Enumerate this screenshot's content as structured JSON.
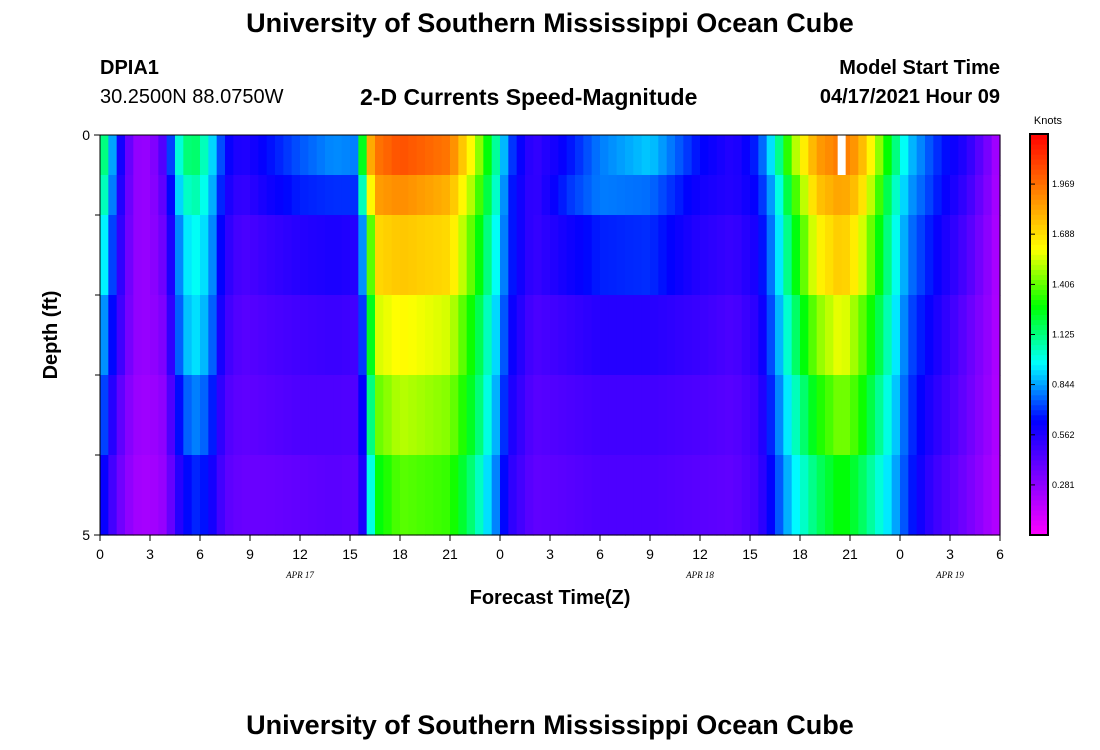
{
  "page": {
    "title_top": "University of Southern Mississippi Ocean Cube",
    "title_bottom": "University of Southern Mississippi Ocean Cube",
    "station_id": "DPIA1",
    "coordinates": "30.2500N  88.0750W",
    "product_title": "2-D Currents Speed-Magnitude",
    "model_start_label": "Model Start Time",
    "model_start_value": "04/17/2021 Hour 09"
  },
  "chart_data": {
    "type": "heatmap",
    "title": "2-D Currents Speed-Magnitude",
    "xlabel": "Forecast Time(Z)",
    "ylabel": "Depth (ft)",
    "x_range_hours": [
      0,
      54
    ],
    "y_range_ft": [
      0,
      5
    ],
    "y_axis_inverted": true,
    "x_tick_hours": [
      0,
      3,
      6,
      9,
      12,
      15,
      18,
      21,
      24,
      27,
      30,
      33,
      36,
      39,
      42,
      45,
      48,
      51,
      54
    ],
    "x_tick_labels": [
      "0",
      "3",
      "6",
      "9",
      "12",
      "15",
      "18",
      "21",
      "0",
      "3",
      "6",
      "9",
      "12",
      "15",
      "18",
      "21",
      "0",
      "3",
      "6"
    ],
    "y_tick_labels": [
      {
        "value": 0,
        "label": "0"
      },
      {
        "value": 5,
        "label": "5"
      }
    ],
    "y_minor_ticks": [
      1,
      2,
      3,
      4
    ],
    "date_labels": [
      {
        "hour": 12,
        "label": "APR 17"
      },
      {
        "hour": 36,
        "label": "APR 18"
      },
      {
        "hour": 51,
        "label": "APR 19"
      }
    ],
    "colorbar": {
      "units": "Knots",
      "min": 0,
      "max": 2.25,
      "ticks": [
        0.281,
        0.562,
        0.844,
        1.125,
        1.406,
        1.688,
        1.969
      ],
      "colors": [
        "#ff00ff",
        "#8000ff",
        "#0000ff",
        "#00ffff",
        "#00ff00",
        "#ffff00",
        "#ff8000",
        "#ff0000"
      ]
    },
    "depth_rows_ft": [
      0.25,
      0.75,
      1.5,
      2.5,
      3.5,
      4.5
    ],
    "speed_profile_hours": [
      0,
      0.5,
      1,
      2,
      3,
      4,
      4.5,
      5.5,
      6.5,
      7.5,
      8.5,
      10,
      12,
      14,
      15.5,
      16,
      16.5,
      18,
      21,
      22.5,
      24,
      24.5,
      26,
      28,
      30,
      33,
      36,
      38,
      39.5,
      40.5,
      41.5,
      43,
      44.5,
      45.5,
      46.5,
      47.5,
      48.5,
      50,
      52,
      53.5,
      54
    ],
    "speed_knots": [
      [
        1.25,
        1.0,
        0.7,
        0.28,
        0.26,
        0.5,
        0.95,
        1.2,
        1.0,
        0.65,
        0.55,
        0.65,
        0.75,
        0.82,
        0.8,
        1.7,
        1.95,
        2.05,
        1.95,
        1.55,
        1.0,
        0.75,
        0.5,
        0.65,
        0.8,
        0.9,
        0.65,
        0.55,
        0.7,
        1.0,
        1.45,
        1.85,
        1.95,
        1.85,
        1.55,
        1.2,
        0.9,
        0.72,
        0.55,
        0.3,
        0.18
      ],
      [
        1.15,
        0.95,
        0.65,
        0.28,
        0.26,
        0.45,
        0.85,
        1.1,
        0.95,
        0.6,
        0.5,
        0.6,
        0.68,
        0.7,
        0.7,
        1.4,
        1.85,
        1.9,
        1.8,
        1.45,
        0.95,
        0.7,
        0.5,
        0.7,
        0.8,
        0.78,
        0.6,
        0.55,
        0.65,
        0.9,
        1.3,
        1.75,
        1.85,
        1.75,
        1.45,
        1.1,
        0.85,
        0.7,
        0.5,
        0.28,
        0.18
      ],
      [
        1.05,
        0.85,
        0.6,
        0.28,
        0.26,
        0.4,
        0.75,
        1.0,
        0.9,
        0.55,
        0.45,
        0.5,
        0.55,
        0.58,
        0.55,
        1.1,
        1.7,
        1.75,
        1.7,
        1.35,
        0.9,
        0.7,
        0.5,
        0.6,
        0.68,
        0.7,
        0.55,
        0.5,
        0.6,
        0.85,
        1.2,
        1.62,
        1.75,
        1.62,
        1.35,
        1.05,
        0.8,
        0.65,
        0.45,
        0.26,
        0.18
      ],
      [
        0.9,
        0.75,
        0.55,
        0.28,
        0.26,
        0.35,
        0.7,
        0.95,
        0.85,
        0.5,
        0.42,
        0.45,
        0.48,
        0.5,
        0.48,
        0.95,
        1.55,
        1.62,
        1.55,
        1.25,
        0.85,
        0.65,
        0.45,
        0.5,
        0.55,
        0.55,
        0.5,
        0.45,
        0.55,
        0.8,
        1.1,
        1.45,
        1.6,
        1.45,
        1.25,
        1.0,
        0.75,
        0.6,
        0.4,
        0.25,
        0.18
      ],
      [
        0.8,
        0.65,
        0.45,
        0.26,
        0.24,
        0.3,
        0.6,
        0.82,
        0.75,
        0.45,
        0.4,
        0.42,
        0.45,
        0.45,
        0.44,
        0.85,
        1.4,
        1.52,
        1.45,
        1.2,
        0.8,
        0.6,
        0.42,
        0.45,
        0.48,
        0.48,
        0.45,
        0.42,
        0.5,
        0.75,
        1.0,
        1.3,
        1.45,
        1.35,
        1.15,
        0.95,
        0.72,
        0.55,
        0.38,
        0.24,
        0.18
      ],
      [
        0.7,
        0.55,
        0.4,
        0.24,
        0.22,
        0.28,
        0.5,
        0.7,
        0.65,
        0.42,
        0.38,
        0.38,
        0.4,
        0.42,
        0.4,
        0.75,
        1.25,
        1.4,
        1.35,
        1.1,
        0.75,
        0.55,
        0.4,
        0.42,
        0.45,
        0.45,
        0.42,
        0.4,
        0.48,
        0.7,
        0.92,
        1.15,
        1.3,
        1.2,
        1.05,
        0.9,
        0.7,
        0.5,
        0.35,
        0.22,
        0.18
      ]
    ],
    "missing_cells": [
      {
        "hour": 44.5,
        "depth_ft": 0.25
      }
    ]
  }
}
